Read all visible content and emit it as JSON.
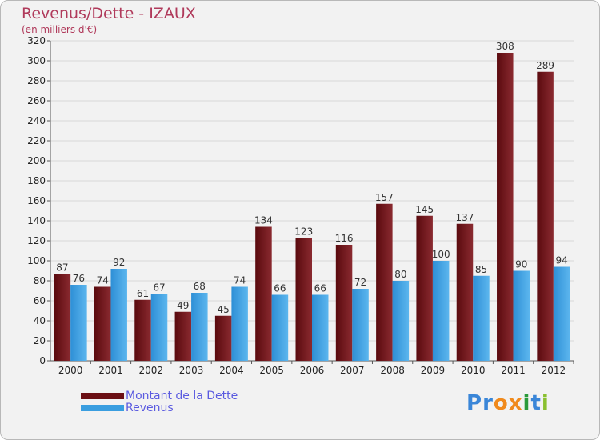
{
  "chart_data": {
    "type": "bar",
    "title": "Revenus/Dette - IZAUX",
    "subtitle": "(en milliers d'€)",
    "categories": [
      "2000",
      "2001",
      "2002",
      "2003",
      "2004",
      "2005",
      "2006",
      "2007",
      "2008",
      "2009",
      "2010",
      "2011",
      "2012"
    ],
    "series": [
      {
        "name": "Montant de la Dette",
        "color": "#6b0f14",
        "values": [
          87,
          74,
          61,
          49,
          45,
          134,
          123,
          116,
          157,
          145,
          137,
          308,
          289
        ]
      },
      {
        "name": "Revenus",
        "color": "#3a9ee0",
        "values": [
          76,
          92,
          67,
          68,
          74,
          66,
          66,
          72,
          80,
          100,
          85,
          90,
          94
        ]
      }
    ],
    "ylim": [
      0,
      320
    ],
    "ytick_step": 20,
    "grid": true,
    "legend_position": "bottom-left"
  },
  "logo": {
    "letters": [
      {
        "ch": "P",
        "color": "#3a86d8"
      },
      {
        "ch": "r",
        "color": "#3a86d8"
      },
      {
        "ch": "o",
        "color": "#f08a1c"
      },
      {
        "ch": "x",
        "color": "#f08a1c"
      },
      {
        "ch": "i",
        "color": "#2a9a3a"
      },
      {
        "ch": "t",
        "color": "#3a86d8"
      },
      {
        "ch": "i",
        "color": "#8ac030"
      }
    ]
  }
}
